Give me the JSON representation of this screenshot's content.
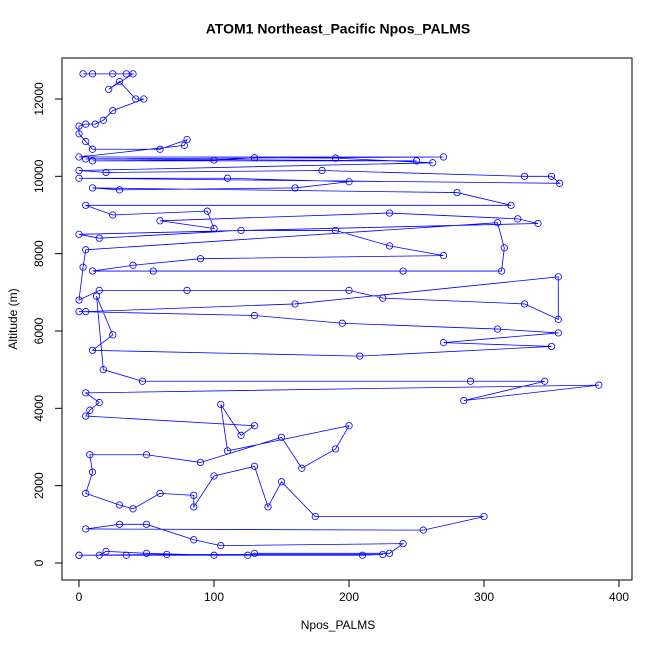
{
  "chart_data": {
    "type": "line",
    "title": "ATOM1 Northeast_Pacific Npos_PALMS",
    "x_label": "Npos_PALMS",
    "y_label": "Altitude (m)",
    "color": "#0000ff",
    "x": [
      3,
      10,
      25,
      35,
      40,
      22,
      30,
      42,
      48,
      25,
      18,
      12,
      5,
      0,
      0,
      5,
      10,
      60,
      80,
      78,
      0,
      270,
      5,
      250,
      10,
      100,
      130,
      190,
      262,
      0,
      20,
      180,
      330,
      350,
      356,
      0,
      110,
      200,
      160,
      30,
      10,
      280,
      320,
      5,
      25,
      95,
      100,
      60,
      230,
      325,
      340,
      0,
      15,
      120,
      190,
      230,
      270,
      90,
      40,
      10,
      55,
      240,
      313,
      315,
      310,
      5,
      3,
      0,
      15,
      80,
      200,
      225,
      330,
      355,
      355,
      160,
      5,
      0,
      130,
      195,
      310,
      355,
      270,
      350,
      208,
      10,
      25,
      13,
      18,
      47,
      290,
      345,
      285,
      385,
      5,
      15,
      8,
      5,
      130,
      120,
      105,
      110,
      200,
      190,
      165,
      150,
      90,
      50,
      8,
      10,
      5,
      30,
      40,
      60,
      85,
      85,
      100,
      130,
      140,
      150,
      175,
      300,
      255,
      5,
      30,
      50,
      85,
      105,
      240,
      230,
      130,
      125,
      100,
      50,
      20,
      15,
      0,
      65,
      225,
      210,
      35,
      0
    ],
    "values": [
      12650,
      12650,
      12650,
      12650,
      12650,
      12250,
      12450,
      12000,
      12000,
      11700,
      11450,
      11350,
      11350,
      11300,
      11100,
      10900,
      10700,
      10700,
      10950,
      10800,
      10500,
      10500,
      10450,
      10400,
      10400,
      10420,
      10480,
      10470,
      10350,
      10150,
      10100,
      10150,
      10000,
      10000,
      9820,
      9950,
      9950,
      9860,
      9700,
      9650,
      9700,
      9580,
      9250,
      9250,
      9000,
      9100,
      8650,
      8850,
      9050,
      8900,
      8780,
      8500,
      8400,
      8600,
      8600,
      8200,
      7950,
      7870,
      7700,
      7550,
      7550,
      7550,
      7550,
      8150,
      8800,
      8100,
      7650,
      6800,
      7050,
      7050,
      7050,
      6850,
      6700,
      6300,
      7400,
      6700,
      6500,
      6500,
      6400,
      6200,
      6050,
      5950,
      5700,
      5600,
      5350,
      5500,
      5900,
      6900,
      5000,
      4700,
      4700,
      4700,
      4200,
      4600,
      4400,
      4150,
      3950,
      3800,
      3550,
      3300,
      4100,
      2900,
      3550,
      2950,
      2450,
      3250,
      2600,
      2800,
      2800,
      2350,
      1800,
      1500,
      1400,
      1800,
      1750,
      1450,
      2250,
      2500,
      1450,
      2100,
      1200,
      1200,
      850,
      880,
      1000,
      1000,
      600,
      450,
      500,
      250,
      250,
      200,
      200,
      250,
      300,
      200,
      200,
      220,
      220,
      200,
      200,
      200
    ],
    "xlim": [
      -12.6,
      409.6
    ],
    "ylim": [
      -440,
      13060
    ],
    "xticks": [
      0,
      100,
      200,
      300,
      400
    ],
    "yticks": [
      0,
      2000,
      4000,
      6000,
      8000,
      10000,
      12000
    ]
  }
}
